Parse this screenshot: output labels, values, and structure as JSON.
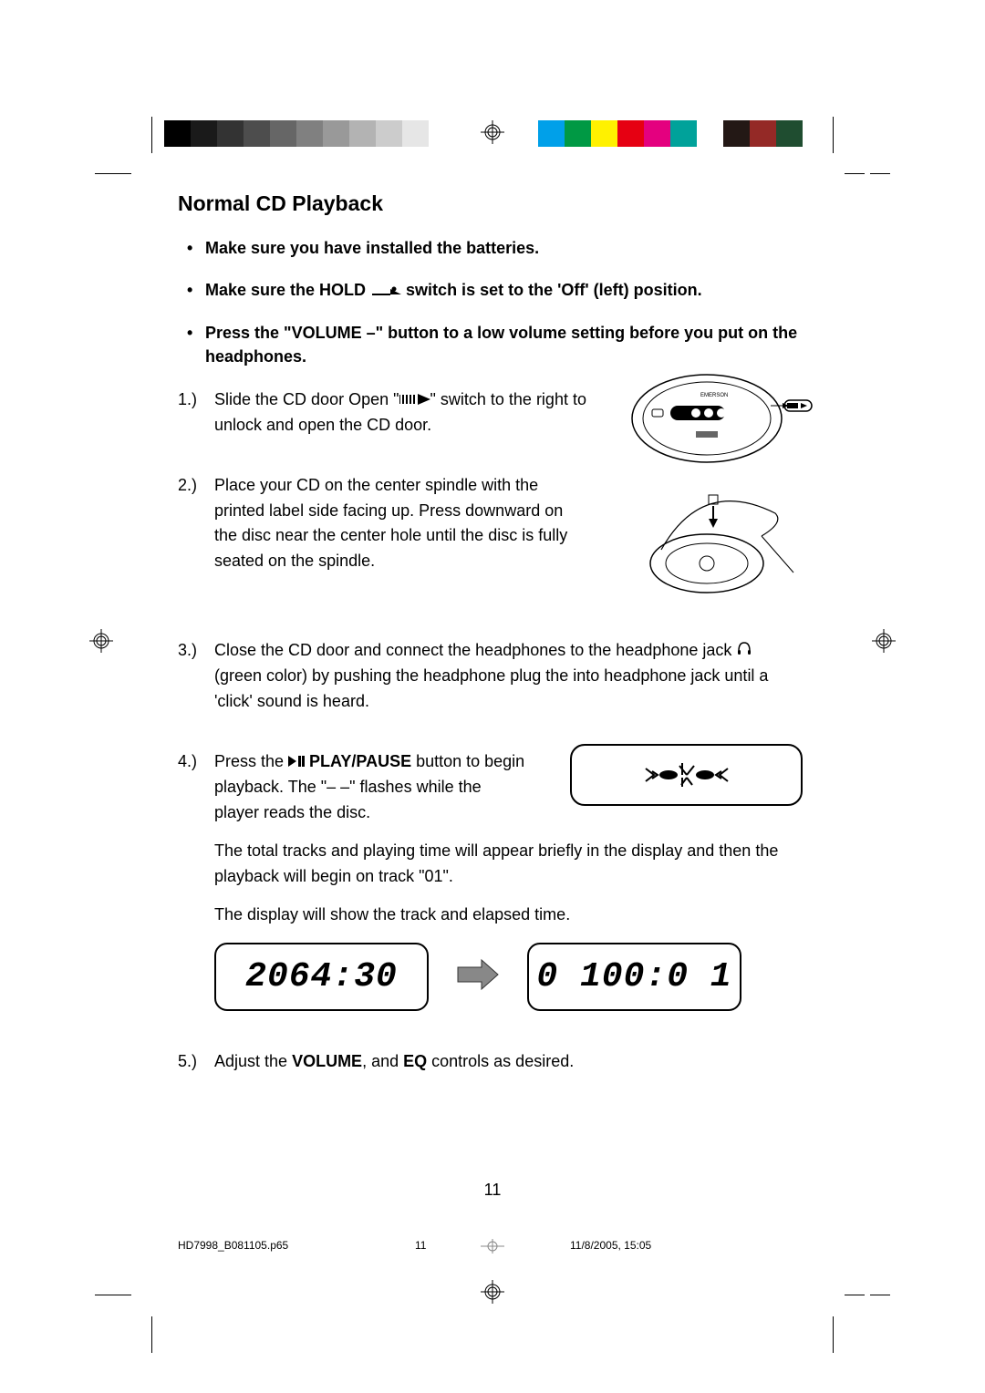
{
  "colorbar_left": [
    "#000000",
    "#1a1a1a",
    "#333333",
    "#4d4d4d",
    "#666666",
    "#808080",
    "#999999",
    "#b3b3b3",
    "#cccccc",
    "#e6e6e6",
    "#ffffff"
  ],
  "colorbar_right": [
    "#00a0e9",
    "#009944",
    "#fff100",
    "#e60012",
    "#e4007f",
    "#00a29a",
    "#ffffff",
    "#231815",
    "#942926",
    "#1f4d30"
  ],
  "section_title": "Normal CD Playback",
  "bullets": [
    "Make sure you have installed the batteries.",
    "Make sure the HOLD __HOLD_ICON__  switch is set to the 'Off' (left) position.",
    "Press the \"VOLUME –\" button to a low volume setting before you put on the headphones."
  ],
  "steps": {
    "s1": {
      "num": "1.)",
      "pre": "Slide the CD door Open \"",
      "post": "\" switch to the right to unlock and open the CD door."
    },
    "s2": {
      "num": "2.)",
      "text": "Place your CD on the center spindle with the printed label side facing up. Press downward on the disc near the center hole until the disc is fully seated on the spindle."
    },
    "s3": {
      "num": "3.)",
      "pre": "Close the CD door and connect the headphones to the headphone jack ",
      "line2": "(green color) by pushing the headphone plug the into headphone jack until a 'click' sound is heard."
    },
    "s4": {
      "num": "4.)",
      "l1a": "Press the ",
      "l1b": " PLAY/PAUSE",
      "l1c": " button to begin playback. The  \"– –\" flashes while the player reads the disc.",
      "p2": "The total tracks and playing time will appear briefly in the display and then the playback will begin on track \"01\".",
      "p3": "The display will show the track and elapsed time."
    },
    "s5": {
      "num": "5.)",
      "a": "Adjust the ",
      "b": "VOLUME",
      "c": ", and ",
      "d": "EQ",
      "e": " controls as desired."
    }
  },
  "lcd": {
    "left": "2064:30",
    "right": "0 100:0 1"
  },
  "page_number": "11",
  "footer": {
    "filename": "HD7998_B081105.p65",
    "page": "11",
    "datetime": "11/8/2005, 15:05"
  }
}
